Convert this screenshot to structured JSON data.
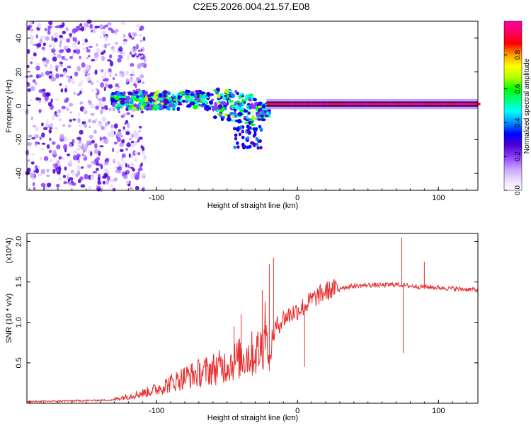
{
  "title": "C2E5.2026.004.21.57.E08",
  "chart_data": [
    {
      "type": "heatmap",
      "title": "C2E5.2026.004.21.57.E08",
      "xlabel": "Height of straight line (km)",
      "ylabel": "Frequency (Hz)",
      "xlim": [
        -192,
        128
      ],
      "ylim": [
        -50,
        50
      ],
      "xticks": [
        -100,
        0,
        100
      ],
      "xtick_labels": [
        "-100",
        "0",
        "100"
      ],
      "yticks": [
        -40,
        -20,
        0,
        20,
        40
      ],
      "ytick_labels": [
        "-40",
        "-20",
        "0",
        "20",
        "40"
      ],
      "colorbar": {
        "label": "Normalized spectral amplitude",
        "range": [
          0,
          1
        ],
        "ticks": [
          0.0,
          0.2,
          0.4,
          0.6,
          0.8
        ],
        "tick_labels": [
          "0.0",
          "0.2",
          "0.4",
          "0.6",
          "0.8"
        ],
        "colormap": [
          "#ffffff",
          "#e8d8ff",
          "#c29cff",
          "#8b3cff",
          "#4b00d0",
          "#0000ff",
          "#0090ff",
          "#00ffff",
          "#00ff80",
          "#00ff00",
          "#b0ff00",
          "#ffff00",
          "#ffa000",
          "#ff0000",
          "#ff0060",
          "#ff00a0"
        ]
      },
      "regions": [
        {
          "x_range": [
            -192,
            -108
          ],
          "freq_range": [
            -50,
            50
          ],
          "amplitude": "0.05-0.25 scattered noise"
        },
        {
          "x_range": [
            -132,
            -20
          ],
          "freq_range": [
            -25,
            10
          ],
          "amplitude": "0.2-0.6 broadband speckle"
        },
        {
          "x_range": [
            -22,
            128
          ],
          "freq_range": [
            -1,
            2
          ],
          "amplitude": "0.9-1.0 narrow line at ~1 Hz"
        }
      ]
    },
    {
      "type": "line",
      "xlabel": "Height of straight line (km)",
      "ylabel": "SNR (10 * v/v)",
      "y_multiplier": "(x10^4)",
      "xlim": [
        -192,
        128
      ],
      "ylim": [
        0,
        2.1
      ],
      "xticks": [
        -100,
        0,
        100
      ],
      "xtick_labels": [
        "-100",
        "0",
        "100"
      ],
      "yticks": [
        0.5,
        1.0,
        1.5,
        2.0
      ],
      "ytick_labels": [
        "0.5",
        "1.0",
        "1.5",
        "2.0"
      ],
      "series": [
        {
          "name": "SNR",
          "color": "#e83030",
          "x": [
            -192,
            -160,
            -130,
            -120,
            -110,
            -100,
            -90,
            -80,
            -70,
            -60,
            -50,
            -45,
            -40,
            -35,
            -30,
            -25,
            -22,
            -20,
            -18,
            -15,
            -12,
            -10,
            -5,
            0,
            5,
            10,
            15,
            20,
            25,
            30,
            40,
            50,
            60,
            70,
            75,
            80,
            90,
            100,
            110,
            120,
            128
          ],
          "y": [
            0.02,
            0.03,
            0.04,
            0.07,
            0.1,
            0.14,
            0.2,
            0.26,
            0.3,
            0.34,
            0.38,
            0.42,
            0.45,
            0.48,
            0.5,
            0.55,
            0.9,
            0.4,
            0.8,
            0.95,
            1.0,
            1.05,
            1.1,
            1.15,
            1.2,
            1.28,
            1.33,
            1.38,
            1.41,
            1.43,
            1.45,
            1.46,
            1.46,
            1.47,
            1.46,
            1.45,
            1.44,
            1.43,
            1.42,
            1.41,
            1.4
          ]
        }
      ],
      "spikes": [
        {
          "x": -45,
          "y": 0.95
        },
        {
          "x": -40,
          "y": 1.1
        },
        {
          "x": -25,
          "y": 1.4
        },
        {
          "x": -20,
          "y": 1.72
        },
        {
          "x": -17,
          "y": 1.8
        },
        {
          "x": 5,
          "y": 0.45
        },
        {
          "x": 74,
          "y": 2.05
        },
        {
          "x": 75,
          "y": 0.62
        },
        {
          "x": 90,
          "y": 1.75
        }
      ]
    }
  ]
}
